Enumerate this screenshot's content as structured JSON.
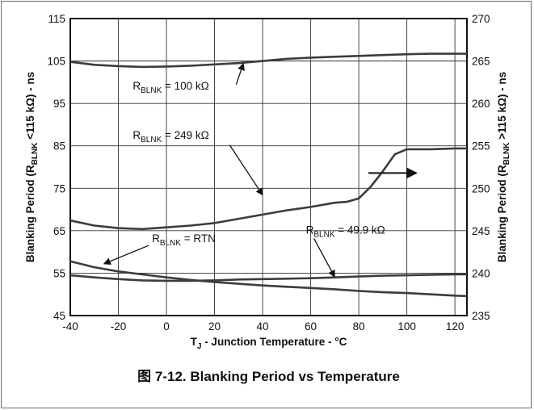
{
  "caption": "图 7-12. Blanking Period vs Temperature",
  "chart_data": {
    "type": "line",
    "xlabel": {
      "main": "T",
      "sub": "J",
      "rest": " - Junction Temperature - °C"
    },
    "ylabel_left": {
      "pre": "Blanking Period (R",
      "sub": "BLNK",
      "post": " <115 kΩ) - ns"
    },
    "ylabel_right": {
      "pre": "Blanking Period (R",
      "sub": "BLNK",
      "post": " >115 kΩ) - ns"
    },
    "xlim": [
      -40,
      125
    ],
    "ylim_left": [
      45,
      115
    ],
    "ylim_right": [
      235,
      270
    ],
    "xticks": [
      -40,
      -20,
      0,
      20,
      40,
      60,
      80,
      100,
      120
    ],
    "yticks_left": [
      45,
      55,
      65,
      75,
      85,
      95,
      105,
      115
    ],
    "yticks_right": [
      235,
      240,
      245,
      250,
      255,
      260,
      265,
      270
    ],
    "grid": true,
    "series": [
      {
        "label": {
          "pre": "R",
          "sub": "BLNK",
          "post": " = 100 kΩ"
        },
        "axis": "left",
        "x": [
          -40,
          -30,
          -20,
          -10,
          0,
          10,
          20,
          30,
          40,
          50,
          60,
          70,
          80,
          90,
          100,
          110,
          120,
          125
        ],
        "y": [
          104.8,
          104.1,
          103.8,
          103.6,
          103.7,
          103.9,
          104.2,
          104.5,
          105.0,
          105.5,
          105.8,
          106.0,
          106.2,
          106.4,
          106.6,
          106.7,
          106.7,
          106.7
        ]
      },
      {
        "label": {
          "pre": "R",
          "sub": "BLNK",
          "post": " = 249 kΩ"
        },
        "axis": "right",
        "x": [
          -40,
          -30,
          -20,
          -10,
          0,
          10,
          20,
          30,
          40,
          50,
          60,
          70,
          75,
          80,
          85,
          90,
          95,
          100,
          110,
          120,
          125
        ],
        "y": [
          246.2,
          245.6,
          245.3,
          245.2,
          245.4,
          245.6,
          245.9,
          246.4,
          246.9,
          247.4,
          247.8,
          248.3,
          248.4,
          248.8,
          250.2,
          252.0,
          254.0,
          254.6,
          254.6,
          254.7,
          254.7
        ]
      },
      {
        "label": {
          "pre": "R",
          "sub": "BLNK",
          "post": " = RTN"
        },
        "axis": "left",
        "x": [
          -40,
          -30,
          -20,
          -10,
          0,
          10,
          20,
          30,
          40,
          50,
          60,
          70,
          80,
          90,
          100,
          110,
          120,
          125
        ],
        "y": [
          57.8,
          56.4,
          55.4,
          54.7,
          54.0,
          53.4,
          52.9,
          52.5,
          52.1,
          51.8,
          51.5,
          51.2,
          50.8,
          50.5,
          50.3,
          50.0,
          49.7,
          49.6
        ]
      },
      {
        "label": {
          "pre": "R",
          "sub": "BLNK",
          "post": " = 49.9 kΩ"
        },
        "axis": "left",
        "x": [
          -40,
          -30,
          -20,
          -10,
          0,
          10,
          20,
          30,
          40,
          50,
          60,
          70,
          80,
          90,
          100,
          110,
          120,
          125
        ],
        "y": [
          54.5,
          54.0,
          53.6,
          53.3,
          53.2,
          53.2,
          53.3,
          53.5,
          53.6,
          53.7,
          53.8,
          54.0,
          54.2,
          54.4,
          54.5,
          54.6,
          54.7,
          54.7
        ]
      }
    ],
    "reference_line": {
      "axis": "left",
      "y": 105
    },
    "annotations": [
      {
        "series": 0,
        "text_at": [
          -14,
          98.3
        ],
        "arrow_to": [
          32,
          104.4
        ]
      },
      {
        "series": 1,
        "text_at": [
          -14,
          86.7
        ],
        "arrow_to": [
          40,
          73.4
        ]
      },
      {
        "series": 2,
        "text_at": [
          -6,
          62.3
        ],
        "arrow_to": [
          -26,
          57.2
        ]
      },
      {
        "series": 3,
        "text_at": [
          58,
          64.3
        ],
        "arrow_to": [
          70,
          54.1
        ]
      }
    ],
    "axis_arrow": {
      "direction": "right",
      "from": [
        84,
        251.8
      ],
      "to": [
        104,
        251.8
      ]
    }
  }
}
